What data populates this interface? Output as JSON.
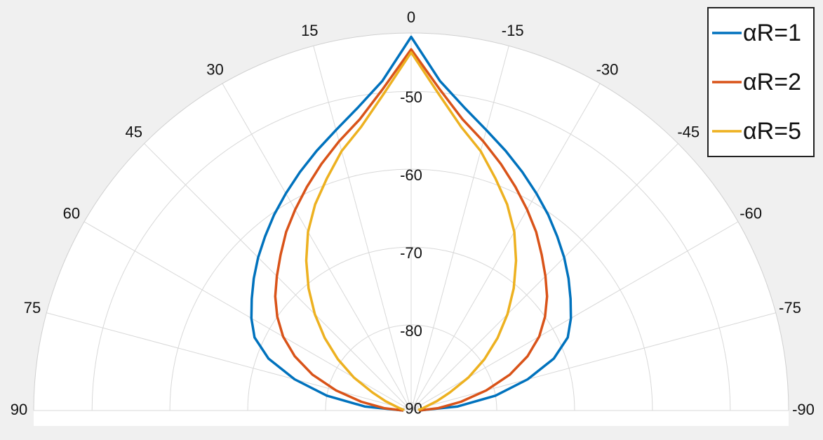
{
  "chart_data": {
    "type": "polar-line",
    "x": [
      -90,
      -85,
      -80,
      -75,
      -70,
      -65,
      -60,
      -55,
      -50,
      -45,
      -40,
      -35,
      -30,
      -25,
      -20,
      -15,
      -10,
      -5,
      0,
      5,
      10,
      15,
      20,
      25,
      30,
      35,
      40,
      45,
      50,
      55,
      60,
      65,
      70,
      75,
      80,
      85,
      90
    ],
    "series": [
      {
        "name": "αR=1",
        "color": "#0072BD",
        "values": [
          -90,
          -85,
          -80,
          -75.5,
          -71.5,
          -68.8,
          -67.3,
          -66,
          -64.6,
          -63.2,
          -61.8,
          -60.3,
          -58.8,
          -57.2,
          -55.5,
          -53.7,
          -51.5,
          -48.5,
          -43,
          -48.5,
          -51.5,
          -53.7,
          -55.5,
          -57.2,
          -58.8,
          -60.3,
          -61.8,
          -63.2,
          -64.6,
          -66,
          -67.3,
          -68.8,
          -71.5,
          -75.5,
          -80,
          -85,
          -90
        ]
      },
      {
        "name": "αR=2",
        "color": "#D95319",
        "values": [
          -90,
          -87.5,
          -84.5,
          -81,
          -77.5,
          -74.5,
          -72,
          -70,
          -68.2,
          -66.6,
          -64.9,
          -63,
          -61.2,
          -59.3,
          -57.3,
          -55.2,
          -53,
          -49.5,
          -44.6,
          -49.5,
          -53,
          -55.2,
          -57.3,
          -59.3,
          -61.2,
          -63,
          -64.9,
          -66.6,
          -68.2,
          -70,
          -72,
          -74.5,
          -77.5,
          -81,
          -84.5,
          -87.5,
          -90
        ]
      },
      {
        "name": "αR=5",
        "color": "#EDB120",
        "values": [
          -90,
          -90,
          -89.6,
          -89,
          -87.5,
          -85.5,
          -82.5,
          -79.5,
          -76.5,
          -73.5,
          -70.5,
          -67.5,
          -64.5,
          -61.8,
          -59.3,
          -56.5,
          -54,
          -50.2,
          -45,
          -50.2,
          -54,
          -56.5,
          -59.3,
          -61.8,
          -64.5,
          -67.5,
          -70.5,
          -73.5,
          -76.5,
          -79.5,
          -82.5,
          -85.5,
          -87.5,
          -89,
          -89.6,
          -90,
          -90
        ]
      }
    ],
    "xlim": [
      -90,
      90
    ],
    "xticks": [
      -90,
      -75,
      -60,
      -45,
      -30,
      -15,
      0,
      15,
      30,
      45,
      60,
      75,
      90
    ],
    "ylim": [
      -91,
      -42.5
    ],
    "yticks": [
      -90,
      -80,
      -70,
      -60,
      -50
    ],
    "grid": true,
    "legend": "northeast"
  }
}
